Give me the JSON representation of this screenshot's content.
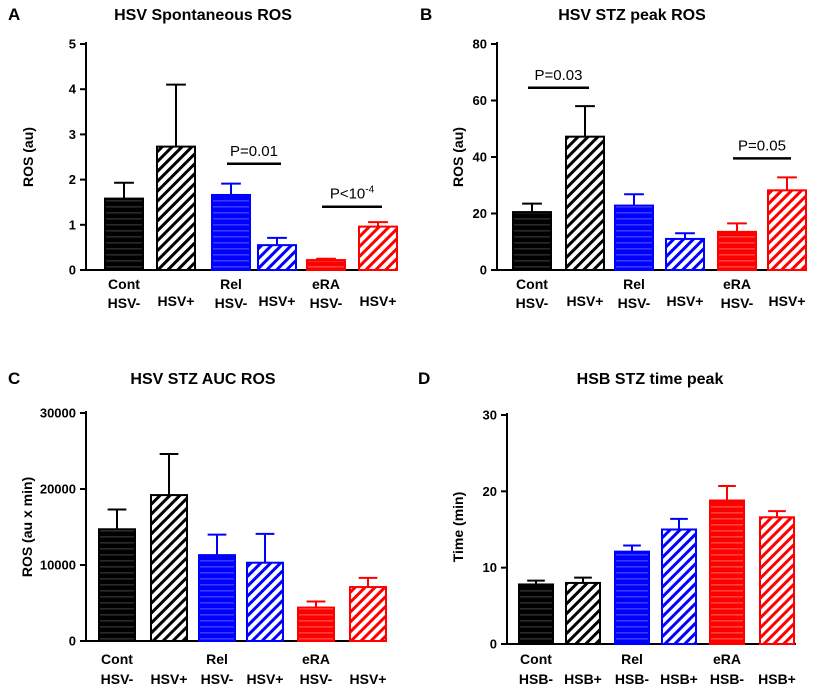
{
  "chart_data": [
    {
      "type": "bar",
      "panel_label": "A",
      "title": "HSV Spontaneous ROS",
      "xlabel": "",
      "ylabel": "ROS (au)",
      "ylim": [
        0,
        5
      ],
      "yticks": [
        "0",
        "1",
        "2",
        "3",
        "4",
        "5"
      ],
      "group_labels": [
        "Cont",
        "Rel",
        "eRA"
      ],
      "categories": [
        "HSV-",
        "HSV+",
        "HSV-",
        "HSV+",
        "HSV-",
        "HSV+"
      ],
      "values": [
        1.58,
        2.73,
        1.66,
        0.55,
        0.22,
        0.96
      ],
      "errors": [
        0.35,
        1.37,
        0.25,
        0.16,
        0.03,
        0.1
      ],
      "colors": [
        "#000000",
        "#000000",
        "#0000ff",
        "#0000ff",
        "#ff0000",
        "#ff0000"
      ],
      "annotations": [
        {
          "text": "P=0.01",
          "from": 2,
          "to": 3,
          "y": 2.35
        },
        {
          "text": "P<10",
          "sup": "-4",
          "from": 4,
          "to": 5,
          "y": 1.4
        }
      ]
    },
    {
      "type": "bar",
      "panel_label": "B",
      "title": "HSV STZ peak ROS",
      "xlabel": "",
      "ylabel": "ROS (au)",
      "ylim": [
        0,
        80
      ],
      "yticks": [
        "0",
        "20",
        "40",
        "60",
        "80"
      ],
      "group_labels": [
        "Cont",
        "Rel",
        "eRA"
      ],
      "categories": [
        "HSV-",
        "HSV+",
        "HSV-",
        "HSV+",
        "HSV-",
        "HSV+"
      ],
      "values": [
        20.5,
        47.2,
        22.8,
        11.0,
        13.5,
        28.2
      ],
      "errors": [
        3.0,
        10.8,
        4.0,
        2.0,
        3.0,
        4.6
      ],
      "colors": [
        "#000000",
        "#000000",
        "#0000ff",
        "#0000ff",
        "#ff0000",
        "#ff0000"
      ],
      "annotations": [
        {
          "text": "P=0.03",
          "from": 0,
          "to": 1,
          "y": 64.5
        },
        {
          "text": "P=0.05",
          "from": 4,
          "to": 5,
          "y": 39.5
        }
      ]
    },
    {
      "type": "bar",
      "panel_label": "C",
      "title": "HSV STZ AUC ROS",
      "xlabel": "",
      "ylabel": "ROS (au x min)",
      "ylim": [
        0,
        30000
      ],
      "yticks": [
        "0",
        "10000",
        "20000",
        "30000"
      ],
      "group_labels": [
        "Cont",
        "Rel",
        "eRA"
      ],
      "categories": [
        "HSV-",
        "HSV+",
        "HSV-",
        "HSV+",
        "HSV-",
        "HSV+"
      ],
      "values": [
        14700,
        19200,
        11300,
        10300,
        4400,
        7100
      ],
      "errors": [
        2600,
        5400,
        2700,
        3800,
        800,
        1200
      ],
      "colors": [
        "#000000",
        "#000000",
        "#0000ff",
        "#0000ff",
        "#ff0000",
        "#ff0000"
      ],
      "annotations": []
    },
    {
      "type": "bar",
      "panel_label": "D",
      "title": "HSB STZ time peak",
      "xlabel": "",
      "ylabel": "Time (min)",
      "ylim": [
        0,
        30
      ],
      "yticks": [
        "0",
        "10",
        "20",
        "30"
      ],
      "group_labels": [
        "Cont",
        "Rel",
        "eRA"
      ],
      "categories": [
        "HSB-",
        "HSB+",
        "HSB-",
        "HSB+",
        "HSB-",
        "HSB+"
      ],
      "values": [
        7.8,
        8.0,
        12.1,
        15.0,
        18.8,
        16.6
      ],
      "errors": [
        0.5,
        0.7,
        0.8,
        1.4,
        1.9,
        0.8
      ],
      "colors": [
        "#000000",
        "#000000",
        "#0000ff",
        "#0000ff",
        "#ff0000",
        "#ff0000"
      ],
      "annotations": []
    }
  ]
}
